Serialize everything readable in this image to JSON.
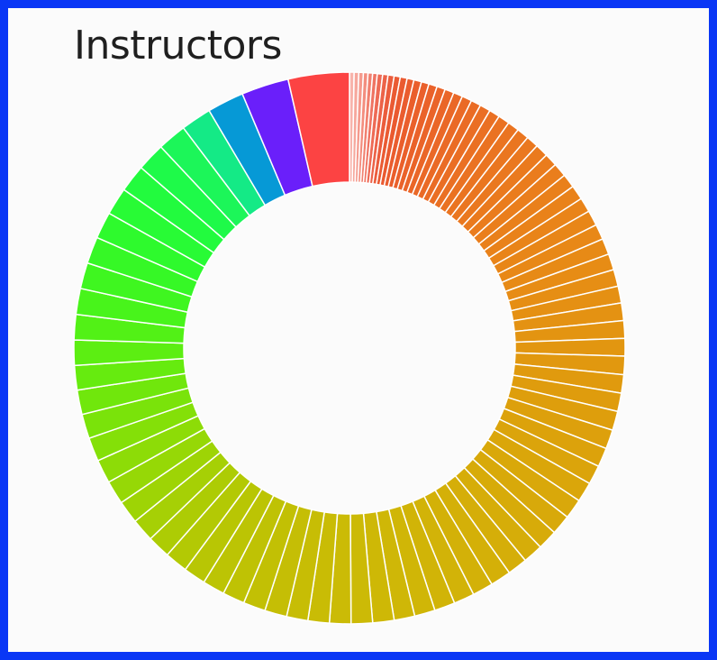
{
  "chart_data": {
    "type": "pie",
    "style": "donut",
    "title": "Instructors",
    "legend": "none",
    "slice_separator_color": "#ffffff",
    "colors": {
      "frame": "#0a37f5",
      "background": "#fbfbfb",
      "title": "#1f1f1f"
    },
    "slices": [
      {
        "value": 0.6,
        "color": "#f8b3ab"
      },
      {
        "value": 0.6,
        "color": "#f6a79c"
      },
      {
        "value": 0.6,
        "color": "#f59a8d"
      },
      {
        "value": 0.6,
        "color": "#f38d7e"
      },
      {
        "value": 0.6,
        "color": "#f1806f"
      },
      {
        "value": 0.6,
        "color": "#ef7362"
      },
      {
        "value": 0.7,
        "color": "#ee6a55"
      },
      {
        "value": 0.7,
        "color": "#ec6248"
      },
      {
        "value": 0.8,
        "color": "#eb5c3c"
      },
      {
        "value": 0.8,
        "color": "#ea5a33"
      },
      {
        "value": 0.9,
        "color": "#ea5a30"
      },
      {
        "value": 0.9,
        "color": "#ea5c2e"
      },
      {
        "value": 1.0,
        "color": "#ea5e2c"
      },
      {
        "value": 1.0,
        "color": "#ea602b"
      },
      {
        "value": 1.1,
        "color": "#ea622a"
      },
      {
        "value": 1.1,
        "color": "#ea6429"
      },
      {
        "value": 1.2,
        "color": "#ea6628"
      },
      {
        "value": 1.2,
        "color": "#ea6827"
      },
      {
        "value": 1.3,
        "color": "#ea6a26"
      },
      {
        "value": 1.3,
        "color": "#ea6c25"
      },
      {
        "value": 1.4,
        "color": "#ea6e24"
      },
      {
        "value": 1.4,
        "color": "#ea7023"
      },
      {
        "value": 1.5,
        "color": "#ea7222"
      },
      {
        "value": 1.5,
        "color": "#ea7421"
      },
      {
        "value": 1.6,
        "color": "#ea7620"
      },
      {
        "value": 1.6,
        "color": "#ea781f"
      },
      {
        "value": 1.7,
        "color": "#ea7a1e"
      },
      {
        "value": 1.7,
        "color": "#ea7c1d"
      },
      {
        "value": 1.8,
        "color": "#ea7e1c"
      },
      {
        "value": 1.8,
        "color": "#e9801b"
      },
      {
        "value": 1.9,
        "color": "#e9821a"
      },
      {
        "value": 1.9,
        "color": "#e98419"
      },
      {
        "value": 2.0,
        "color": "#e88618"
      },
      {
        "value": 2.0,
        "color": "#e88817"
      },
      {
        "value": 2.1,
        "color": "#e78a16"
      },
      {
        "value": 2.1,
        "color": "#e78c15"
      },
      {
        "value": 2.2,
        "color": "#e68e14"
      },
      {
        "value": 2.2,
        "color": "#e59013"
      },
      {
        "value": 2.3,
        "color": "#e49212"
      },
      {
        "value": 2.3,
        "color": "#e39411"
      },
      {
        "value": 2.3,
        "color": "#e29610"
      },
      {
        "value": 2.4,
        "color": "#e1980f"
      },
      {
        "value": 2.4,
        "color": "#e09a0e"
      },
      {
        "value": 2.4,
        "color": "#df9c0d"
      },
      {
        "value": 2.5,
        "color": "#de9e0c"
      },
      {
        "value": 2.5,
        "color": "#dda00c"
      },
      {
        "value": 2.5,
        "color": "#dca20b"
      },
      {
        "value": 2.5,
        "color": "#dba40b"
      },
      {
        "value": 2.6,
        "color": "#daa60a"
      },
      {
        "value": 2.6,
        "color": "#d9a80a"
      },
      {
        "value": 2.6,
        "color": "#d8a90a"
      },
      {
        "value": 2.6,
        "color": "#d7ab09"
      },
      {
        "value": 2.6,
        "color": "#d6ad09"
      },
      {
        "value": 2.6,
        "color": "#d5ae09"
      },
      {
        "value": 2.7,
        "color": "#d4b008"
      },
      {
        "value": 2.7,
        "color": "#d3b108"
      },
      {
        "value": 2.7,
        "color": "#d2b308"
      },
      {
        "value": 2.7,
        "color": "#d1b407"
      },
      {
        "value": 2.7,
        "color": "#d0b607"
      },
      {
        "value": 2.7,
        "color": "#cfb707"
      },
      {
        "value": 2.8,
        "color": "#ceb806"
      },
      {
        "value": 2.8,
        "color": "#ccba06"
      },
      {
        "value": 2.8,
        "color": "#cbbb06"
      },
      {
        "value": 2.8,
        "color": "#c9bc05"
      },
      {
        "value": 2.8,
        "color": "#c7bd05"
      },
      {
        "value": 2.9,
        "color": "#c5be05"
      },
      {
        "value": 2.9,
        "color": "#c2c004"
      },
      {
        "value": 2.9,
        "color": "#bfc204"
      },
      {
        "value": 2.9,
        "color": "#bcc404"
      },
      {
        "value": 2.9,
        "color": "#b8c604"
      },
      {
        "value": 3.0,
        "color": "#b3c904"
      },
      {
        "value": 3.0,
        "color": "#adcc04"
      },
      {
        "value": 3.0,
        "color": "#a6d005"
      },
      {
        "value": 3.0,
        "color": "#9ed405"
      },
      {
        "value": 3.1,
        "color": "#96d806"
      },
      {
        "value": 3.1,
        "color": "#8ddc07"
      },
      {
        "value": 3.1,
        "color": "#84e008"
      },
      {
        "value": 3.2,
        "color": "#7ae30a"
      },
      {
        "value": 3.2,
        "color": "#70e70c"
      },
      {
        "value": 3.2,
        "color": "#66eb0f"
      },
      {
        "value": 3.3,
        "color": "#5cee12"
      },
      {
        "value": 3.3,
        "color": "#52f116"
      },
      {
        "value": 3.4,
        "color": "#48f41b"
      },
      {
        "value": 3.4,
        "color": "#3ff620"
      },
      {
        "value": 3.5,
        "color": "#36f826"
      },
      {
        "value": 3.5,
        "color": "#2efa2d"
      },
      {
        "value": 3.6,
        "color": "#28fb35"
      },
      {
        "value": 3.6,
        "color": "#22fb3e"
      },
      {
        "value": 3.7,
        "color": "#1efa49"
      },
      {
        "value": 3.8,
        "color": "#1cf659"
      },
      {
        "value": 4.0,
        "color": "#14ea86"
      },
      {
        "value": 4.8,
        "color": "#0699d6"
      },
      {
        "value": 6.2,
        "color": "#6a1ffa"
      },
      {
        "value": 8.0,
        "color": "#fc4343"
      }
    ]
  }
}
